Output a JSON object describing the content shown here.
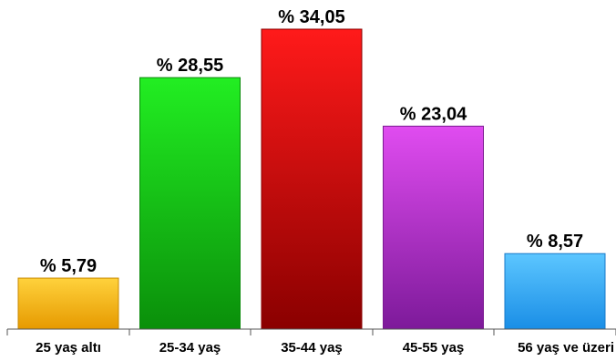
{
  "chart_data": {
    "type": "bar",
    "title": "",
    "xlabel": "",
    "ylabel": "",
    "categories": [
      "25 yaş altı",
      "25-34 yaş",
      "35-44 yaş",
      "45-55 yaş",
      "56 yaş ve üzeri"
    ],
    "values": [
      5.79,
      28.55,
      34.05,
      23.04,
      8.57
    ],
    "value_labels": [
      "% 5,79",
      "% 28,55",
      "% 34,05",
      "% 23,04",
      "% 8,57"
    ],
    "ylim": [
      0,
      34.05
    ],
    "grid": false,
    "legend": "none",
    "colors": [
      {
        "top": "#ffd23c",
        "bottom": "#e69a00",
        "stroke": "#c98a00"
      },
      {
        "top": "#22ee22",
        "bottom": "#0a8f0a",
        "stroke": "#0a8a0a"
      },
      {
        "top": "#ff1a1a",
        "bottom": "#8a0000",
        "stroke": "#880000"
      },
      {
        "top": "#e04cf0",
        "bottom": "#7d1a9a",
        "stroke": "#7a1a90"
      },
      {
        "top": "#5cc6ff",
        "bottom": "#1a8ee6",
        "stroke": "#1778c8"
      }
    ]
  }
}
